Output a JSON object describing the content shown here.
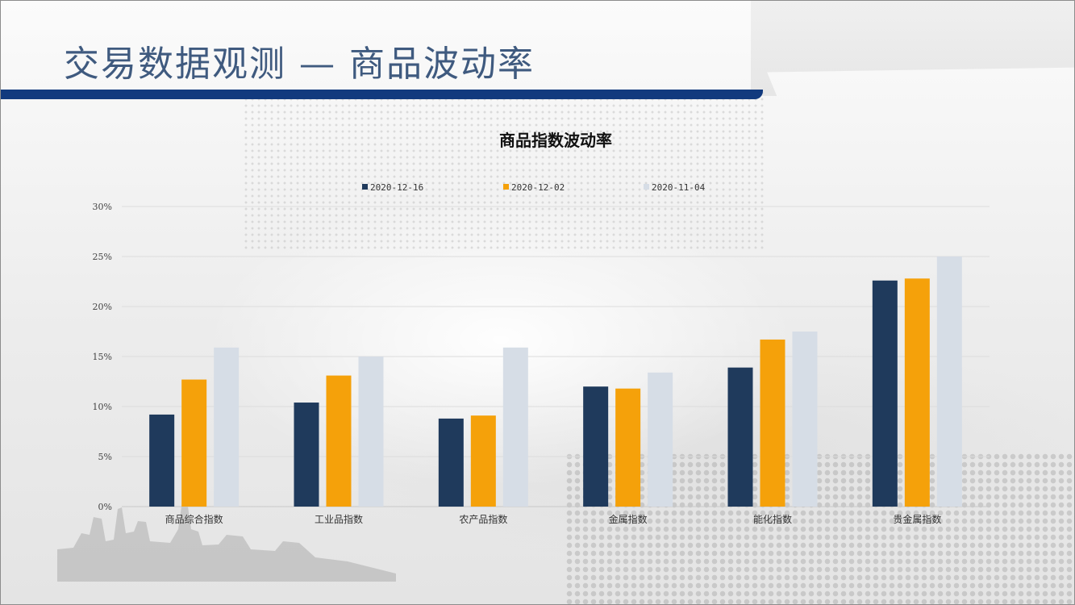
{
  "page": {
    "title": "交易数据观测 — 商品波动率"
  },
  "colors": {
    "title_text": "#3f5a7f",
    "title_bar": "#123a7e",
    "series": [
      "#1f3a5c",
      "#f5a10a",
      "#d6dde6"
    ]
  },
  "chart_data": {
    "type": "bar",
    "title": "商品指数波动率",
    "categories": [
      "商品综合指数",
      "工业品指数",
      "农产品指数",
      "金属指数",
      "能化指数",
      "贵金属指数"
    ],
    "series": [
      {
        "name": "2020-12-16",
        "values": [
          9.2,
          10.4,
          8.8,
          12.0,
          13.9,
          22.6
        ]
      },
      {
        "name": "2020-12-02",
        "values": [
          12.7,
          13.1,
          9.1,
          11.8,
          16.7,
          22.8
        ]
      },
      {
        "name": "2020-11-04",
        "values": [
          15.9,
          15.0,
          15.9,
          13.4,
          17.5,
          25.0
        ]
      }
    ],
    "ylim": [
      0,
      30
    ],
    "yticks": [
      0,
      5,
      10,
      15,
      20,
      25,
      30
    ],
    "ytick_labels": [
      "0%",
      "5%",
      "10%",
      "15%",
      "20%",
      "25%",
      "30%"
    ],
    "xlabel": "",
    "ylabel": "",
    "grid": true,
    "legend_position": "top-center"
  }
}
